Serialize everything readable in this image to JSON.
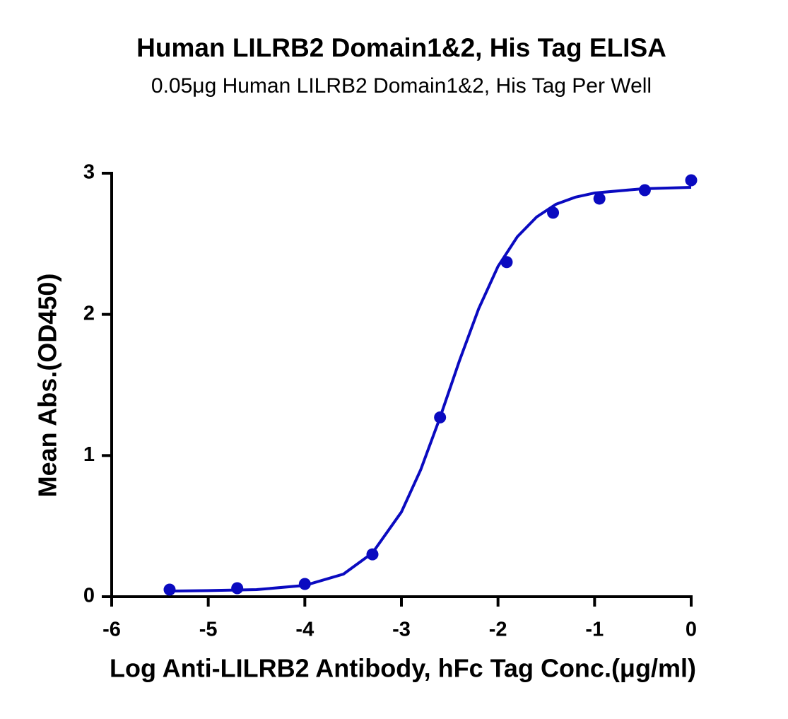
{
  "chart_data": {
    "type": "scatter",
    "title": "Human LILRB2 Domain1&2, His Tag ELISA",
    "subtitle": "0.05μg Human LILRB2 Domain1&2, His Tag Per Well",
    "x_label": "Log Anti-LILRB2 Antibody, hFc Tag Conc.(μg/ml)",
    "y_label": "Mean Abs.(OD450)",
    "color": "#0a0ac0",
    "x": [
      -5.4,
      -4.7,
      -4.0,
      -3.3,
      -2.6,
      -1.91,
      -1.43,
      -0.95,
      -0.48,
      0
    ],
    "values": [
      0.05,
      0.06,
      0.09,
      0.3,
      1.27,
      2.37,
      2.72,
      2.82,
      2.88,
      2.95
    ],
    "fit": {
      "x": [
        -5.4,
        -5,
        -4.5,
        -4,
        -3.6,
        -3.3,
        -3,
        -2.8,
        -2.6,
        -2.4,
        -2.2,
        -2,
        -1.8,
        -1.6,
        -1.4,
        -1.2,
        -1,
        -0.5,
        0
      ],
      "y": [
        0.04,
        0.043,
        0.05,
        0.08,
        0.16,
        0.31,
        0.6,
        0.9,
        1.27,
        1.67,
        2.04,
        2.34,
        2.55,
        2.69,
        2.78,
        2.83,
        2.86,
        2.89,
        2.9
      ]
    },
    "xlim": [
      -6,
      0
    ],
    "ylim": [
      0,
      3
    ],
    "xticks": [
      -6,
      -5,
      -4,
      -3,
      -2,
      -1,
      0
    ],
    "yticks": [
      0,
      1,
      2,
      3
    ]
  }
}
